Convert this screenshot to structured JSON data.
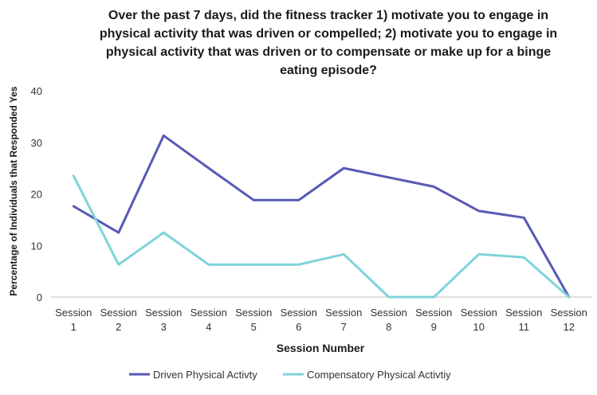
{
  "chart_data": {
    "type": "line",
    "title_lines": [
      "Over the past 7 days, did the fitness tracker 1) motivate you to engage in",
      "physical activity that was driven or compelled; 2) motivate you to engage in",
      "physical activity that was driven or to compensate or make up for a binge",
      "eating episode?"
    ],
    "xlabel": "Session Number",
    "ylabel": "Percentage of Individuals that Responded Yes",
    "ylim": [
      0,
      40
    ],
    "yticks": [
      "0",
      "10",
      "20",
      "30",
      "40"
    ],
    "grid": false,
    "legend_position": "bottom",
    "categories": [
      [
        "Session",
        "1"
      ],
      [
        "Session",
        "2"
      ],
      [
        "Session",
        "3"
      ],
      [
        "Session",
        "4"
      ],
      [
        "Session",
        "5"
      ],
      [
        "Session",
        "6"
      ],
      [
        "Session",
        "7"
      ],
      [
        "Session",
        "8"
      ],
      [
        "Session",
        "9"
      ],
      [
        "Session",
        "10"
      ],
      [
        "Session",
        "11"
      ],
      [
        "Session",
        "12"
      ]
    ],
    "series": [
      {
        "name": "Driven Physical Activty",
        "color": "#5759b5",
        "values": [
          17.6,
          12.5,
          31.3,
          25.0,
          18.8,
          18.8,
          25.0,
          23.2,
          21.4,
          16.7,
          15.4,
          0
        ]
      },
      {
        "name": "Compensatory Physical Activtiy",
        "color": "#7fd3da",
        "values": [
          23.5,
          6.3,
          12.5,
          6.3,
          6.3,
          6.3,
          8.3,
          0,
          0,
          8.3,
          7.7,
          0
        ]
      }
    ]
  }
}
